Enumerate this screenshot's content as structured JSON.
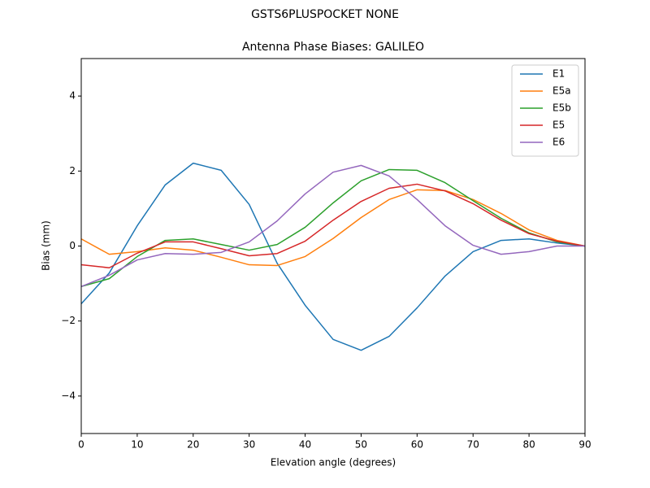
{
  "chart_data": {
    "type": "line",
    "suptitle": "GSTS6PLUSPOCKET NONE",
    "title": "Antenna Phase Biases: GALILEO",
    "xlabel": "Elevation angle (degrees)",
    "ylabel": "Bias (mm)",
    "x": [
      0,
      5,
      10,
      15,
      20,
      25,
      30,
      35,
      40,
      45,
      50,
      55,
      60,
      65,
      70,
      75,
      80,
      85,
      90
    ],
    "series": [
      {
        "name": "E1",
        "color": "#1f77b4",
        "values": [
          -1.54,
          -0.72,
          0.54,
          1.63,
          2.21,
          2.02,
          1.11,
          -0.46,
          -1.58,
          -2.49,
          -2.78,
          -2.41,
          -1.65,
          -0.8,
          -0.15,
          0.15,
          0.19,
          0.08,
          0
        ]
      },
      {
        "name": "E5a",
        "color": "#ff7f0e",
        "values": [
          0.19,
          -0.22,
          -0.15,
          -0.05,
          -0.11,
          -0.3,
          -0.5,
          -0.52,
          -0.28,
          0.2,
          0.76,
          1.24,
          1.5,
          1.48,
          1.24,
          0.87,
          0.43,
          0.15,
          0
        ]
      },
      {
        "name": "E5b",
        "color": "#2ca02c",
        "values": [
          -1.08,
          -0.87,
          -0.28,
          0.15,
          0.19,
          0.04,
          -0.11,
          0.04,
          0.5,
          1.15,
          1.74,
          2.04,
          2.02,
          1.69,
          1.21,
          0.74,
          0.35,
          0.11,
          0
        ]
      },
      {
        "name": "E5",
        "color": "#d62728",
        "values": [
          -0.5,
          -0.58,
          -0.19,
          0.11,
          0.11,
          -0.07,
          -0.26,
          -0.2,
          0.13,
          0.69,
          1.19,
          1.54,
          1.65,
          1.47,
          1.13,
          0.69,
          0.33,
          0.13,
          0
        ]
      },
      {
        "name": "E6",
        "color": "#9467bd",
        "values": [
          -1.08,
          -0.78,
          -0.37,
          -0.2,
          -0.22,
          -0.17,
          0.11,
          0.67,
          1.39,
          1.97,
          2.15,
          1.87,
          1.24,
          0.54,
          0.02,
          -0.22,
          -0.15,
          0,
          0
        ]
      }
    ],
    "xlim": [
      0,
      90
    ],
    "xticks": [
      0,
      10,
      20,
      30,
      40,
      50,
      60,
      70,
      80,
      90
    ],
    "ylim": [
      -5,
      5
    ],
    "yticks": [
      {
        "value": -4,
        "label": "−4"
      },
      {
        "value": -2,
        "label": "−2"
      },
      0,
      2,
      4
    ],
    "grid": false,
    "legend": "upper right"
  }
}
